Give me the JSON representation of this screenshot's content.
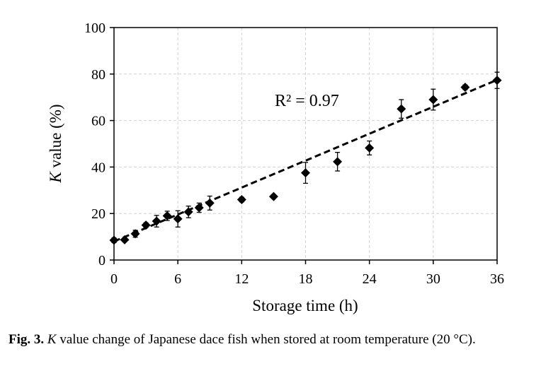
{
  "chart_data": {
    "type": "scatter",
    "xlabel": "Storage time (h)",
    "ylabel": {
      "italic_part": "K",
      "rest": " value (%)"
    },
    "xlim": [
      0,
      36
    ],
    "ylim": [
      0,
      100
    ],
    "x_ticks": [
      0,
      6,
      12,
      18,
      24,
      30,
      36
    ],
    "y_ticks": [
      0,
      20,
      40,
      60,
      80,
      100
    ],
    "grid": true,
    "points": [
      {
        "x": 0,
        "y": 8.5,
        "err": 1.0
      },
      {
        "x": 1,
        "y": 8.7,
        "err": 0.8
      },
      {
        "x": 2,
        "y": 11.3,
        "err": 1.5
      },
      {
        "x": 3,
        "y": 15.0,
        "err": 1.0
      },
      {
        "x": 4,
        "y": 16.7,
        "err": 2.5
      },
      {
        "x": 5,
        "y": 19.0,
        "err": 2.0
      },
      {
        "x": 6,
        "y": 17.7,
        "err": 3.5
      },
      {
        "x": 7,
        "y": 20.7,
        "err": 2.5
      },
      {
        "x": 8,
        "y": 22.5,
        "err": 2.0
      },
      {
        "x": 9,
        "y": 24.5,
        "err": 3.0
      },
      {
        "x": 12,
        "y": 26.0,
        "err": 1.0
      },
      {
        "x": 15,
        "y": 27.3,
        "err": 0.8
      },
      {
        "x": 18,
        "y": 37.5,
        "err": 4.5
      },
      {
        "x": 21,
        "y": 42.3,
        "err": 4.0
      },
      {
        "x": 24,
        "y": 48.2,
        "err": 3.0
      },
      {
        "x": 27,
        "y": 65.0,
        "err": 4.0
      },
      {
        "x": 30,
        "y": 69.0,
        "err": 4.5
      },
      {
        "x": 33,
        "y": 74.3,
        "err": 1.0
      },
      {
        "x": 36,
        "y": 77.3,
        "err": 3.5
      }
    ],
    "trendline": {
      "style": "dashed",
      "x": [
        0,
        36
      ],
      "y": [
        8.0,
        77.5
      ]
    },
    "annotation": "R² = 0.97"
  },
  "caption": {
    "label": "Fig. 3.",
    "italic_symbol": "K",
    "text": " value change of Japanese dace fish when stored at room temperature (20 °C)."
  }
}
